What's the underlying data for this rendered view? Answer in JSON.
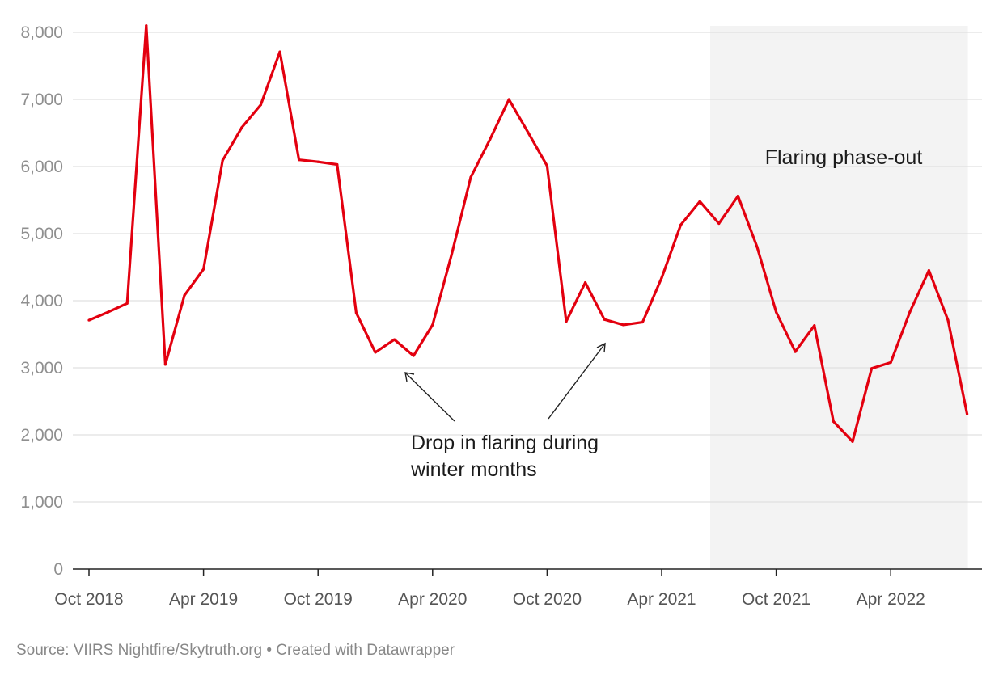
{
  "chart_data": {
    "type": "line",
    "title": "",
    "xlabel": "",
    "ylabel": "",
    "ylim": [
      0,
      8000
    ],
    "y_ticks": [
      0,
      1000,
      2000,
      3000,
      4000,
      5000,
      6000,
      7000,
      8000
    ],
    "y_tick_labels": [
      "0",
      "1,000",
      "2,000",
      "3,000",
      "4,000",
      "5,000",
      "6,000",
      "7,000",
      "8,000"
    ],
    "x_tick_labels": [
      "Oct 2018",
      "Apr 2019",
      "Oct 2019",
      "Apr 2020",
      "Oct 2020",
      "Apr 2021",
      "Oct 2021",
      "Apr 2022"
    ],
    "x_tick_month_index": [
      0,
      6,
      12,
      18,
      24,
      30,
      36,
      42
    ],
    "grid": true,
    "series": [
      {
        "name": "Flaring",
        "color": "#e3000f",
        "start": "Oct 2018",
        "values": [
          3710,
          3830,
          3960,
          8100,
          3050,
          4080,
          4470,
          6090,
          6580,
          6920,
          7710,
          6100,
          6070,
          6030,
          3820,
          3230,
          3420,
          3180,
          3640,
          4690,
          5840,
          6400,
          7000,
          6510,
          6010,
          3690,
          4270,
          3720,
          3640,
          3680,
          4340,
          5130,
          5480,
          5150,
          5560,
          4800,
          3830,
          3240,
          3630,
          2200,
          1900,
          2990,
          3080,
          3830,
          4450,
          3710,
          2310
        ]
      }
    ],
    "shaded_region": {
      "label": "Flaring phase-out",
      "from_month_index": 33,
      "to_month_index": 46,
      "color": "#f3f3f3"
    },
    "annotations": [
      {
        "lines": [
          "Drop in flaring during",
          "winter months"
        ]
      }
    ]
  },
  "footer": {
    "source": "Source: VIIRS Nightfire/Skytruth.org • Created with Datawrapper"
  },
  "colors": {
    "line": "#e3000f",
    "grid": "#e0e0e0",
    "axis": "#222222",
    "shade": "#f3f3f3"
  }
}
